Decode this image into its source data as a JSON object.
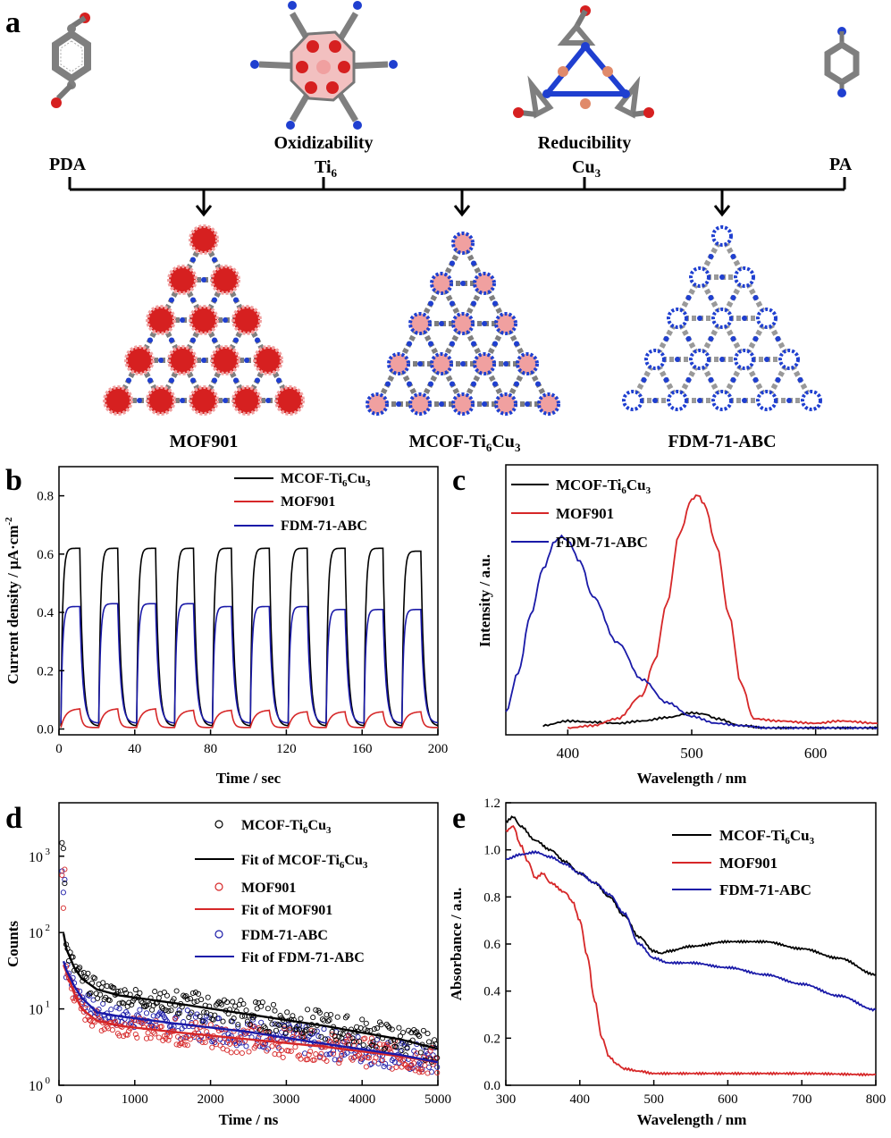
{
  "panels": {
    "a": "a",
    "b": "b",
    "c": "c",
    "d": "d",
    "e": "e"
  },
  "scheme": {
    "ligands": [
      "PDA",
      "PA"
    ],
    "clusters": [
      {
        "label": "Oxidizability",
        "name": "Ti",
        "sub": "6"
      },
      {
        "label": "Reducibility",
        "name": "Cu",
        "sub": "3"
      }
    ],
    "products": [
      {
        "name": "MOF901",
        "sub": "",
        "tail": ""
      },
      {
        "name": "MCOF-Ti",
        "sub": "6",
        "mid": "Cu",
        "sub2": "3"
      },
      {
        "name": "FDM-71-ABC",
        "sub": "",
        "tail": ""
      }
    ],
    "colors": {
      "carbon": "#7f7f7f",
      "oxygen": "#d62020",
      "nitrogen": "#1f3fd0",
      "copper": "#e08a6a",
      "pink": "#f0a0a0"
    }
  },
  "legend_names": {
    "mcof_a": "MCOF-Ti",
    "mcof_b": "6",
    "mcof_c": "Cu",
    "mcof_d": "3",
    "mof901": "MOF901",
    "fdm": "FDM-71-ABC",
    "fit_prefix": "Fit of "
  },
  "colors": {
    "mcof": "#000000",
    "mof901": "#d62728",
    "fdm": "#1a1aa8"
  },
  "chart_data": [
    {
      "id": "b",
      "type": "line",
      "xlabel": "Time / sec",
      "ylabel": "Current density / μA·cm",
      "ylabel_sup": "-2",
      "xlim": [
        0,
        200
      ],
      "ylim": [
        -0.02,
        0.9
      ],
      "xticks": [
        0,
        40,
        80,
        120,
        160,
        200
      ],
      "yticks": [
        0.0,
        0.2,
        0.4,
        0.6,
        0.8
      ],
      "legend": "top-right",
      "cycle_period_s": 20,
      "on_duration_s": 10,
      "series": [
        {
          "name": "MCOF-Ti6Cu3",
          "on_peak": [
            0.62,
            0.62,
            0.62,
            0.62,
            0.62,
            0.62,
            0.62,
            0.62,
            0.62,
            0.61
          ],
          "baseline": 0.01
        },
        {
          "name": "MOF901",
          "on_peak": [
            0.07,
            0.07,
            0.07,
            0.065,
            0.065,
            0.065,
            0.06,
            0.06,
            0.06,
            0.06
          ],
          "baseline": 0.005
        },
        {
          "name": "FDM-71-ABC",
          "on_peak": [
            0.42,
            0.43,
            0.43,
            0.43,
            0.42,
            0.42,
            0.42,
            0.41,
            0.41,
            0.41
          ],
          "baseline": 0.02
        }
      ]
    },
    {
      "id": "c",
      "type": "line",
      "xlabel": "Wavelength / nm",
      "ylabel": "Intensity / a.u.",
      "xlim": [
        350,
        650
      ],
      "xticks": [
        400,
        500,
        600
      ],
      "legend": "top-left",
      "series": [
        {
          "name": "MCOF-Ti6Cu3",
          "x": [
            380,
            400,
            420,
            440,
            460,
            480,
            500,
            510,
            520,
            540,
            560,
            600,
            650
          ],
          "y": [
            0.02,
            0.04,
            0.035,
            0.03,
            0.04,
            0.055,
            0.075,
            0.07,
            0.05,
            0.02,
            0.01,
            0.01,
            0.01
          ]
        },
        {
          "name": "MOF901",
          "x": [
            400,
            420,
            440,
            460,
            470,
            480,
            490,
            500,
            505,
            510,
            520,
            530,
            540,
            550,
            570,
            600,
            620,
            650
          ],
          "y": [
            0.01,
            0.02,
            0.05,
            0.15,
            0.3,
            0.55,
            0.85,
            1.0,
            1.02,
            0.98,
            0.8,
            0.5,
            0.2,
            0.05,
            0.04,
            0.03,
            0.04,
            0.03
          ]
        },
        {
          "name": "FDM-71-ABC",
          "x": [
            350,
            360,
            370,
            380,
            390,
            395,
            400,
            410,
            420,
            440,
            460,
            480,
            500,
            520,
            540,
            560,
            600,
            650
          ],
          "y": [
            0.08,
            0.25,
            0.5,
            0.7,
            0.82,
            0.84,
            0.82,
            0.73,
            0.58,
            0.38,
            0.22,
            0.12,
            0.06,
            0.03,
            0.02,
            0.01,
            0.01,
            0.01
          ]
        }
      ]
    },
    {
      "id": "d",
      "type": "scatter",
      "xlabel": "Time / ns",
      "ylabel": "Counts",
      "xlim": [
        0,
        5000
      ],
      "ylim_log10": [
        0,
        3.7
      ],
      "xticks": [
        0,
        1000,
        2000,
        3000,
        4000,
        5000
      ],
      "yticks_exp": [
        0,
        1,
        2,
        3
      ],
      "scale": "log",
      "legend": "top-right",
      "series": [
        {
          "name": "MCOF-Ti6Cu3",
          "fit_x": [
            50,
            100,
            200,
            300,
            500,
            800,
            1500,
            2500,
            3500,
            4500,
            5000
          ],
          "fit_y": [
            110,
            60,
            35,
            25,
            18,
            15,
            12,
            8.5,
            6,
            4,
            3
          ]
        },
        {
          "name": "MOF901",
          "fit_x": [
            50,
            100,
            200,
            300,
            500,
            800,
            1500,
            2500,
            3500,
            4500,
            5000
          ],
          "fit_y": [
            40,
            30,
            16,
            10,
            7,
            6,
            5,
            4,
            3.2,
            2.4,
            2
          ]
        },
        {
          "name": "FDM-71-ABC",
          "fit_x": [
            50,
            100,
            200,
            300,
            500,
            800,
            1500,
            2500,
            3500,
            4500,
            5000
          ],
          "fit_y": [
            45,
            32,
            20,
            14,
            9,
            8,
            6.5,
            5,
            3.5,
            2.5,
            2
          ]
        }
      ]
    },
    {
      "id": "e",
      "type": "line",
      "xlabel": "Wavelength / nm",
      "ylabel": "Absorbance / a.u.",
      "xlim": [
        300,
        800
      ],
      "ylim": [
        0,
        1.2
      ],
      "xticks": [
        300,
        400,
        500,
        600,
        700,
        800
      ],
      "yticks": [
        0.0,
        0.2,
        0.4,
        0.6,
        0.8,
        1.0,
        1.2
      ],
      "legend": "top-right",
      "series": [
        {
          "name": "MCOF-Ti6Cu3",
          "x": [
            300,
            310,
            320,
            340,
            360,
            380,
            400,
            420,
            440,
            460,
            480,
            500,
            510,
            520,
            550,
            600,
            650,
            700,
            750,
            800
          ],
          "y": [
            1.12,
            1.14,
            1.1,
            1.04,
            1.0,
            0.95,
            0.9,
            0.86,
            0.8,
            0.72,
            0.63,
            0.57,
            0.56,
            0.57,
            0.59,
            0.61,
            0.61,
            0.58,
            0.54,
            0.47
          ]
        },
        {
          "name": "MOF901",
          "x": [
            300,
            310,
            320,
            330,
            340,
            350,
            360,
            380,
            390,
            400,
            410,
            420,
            430,
            440,
            450,
            460,
            480,
            500,
            550,
            600,
            700,
            800
          ],
          "y": [
            1.08,
            1.1,
            1.02,
            0.95,
            0.88,
            0.9,
            0.86,
            0.82,
            0.78,
            0.7,
            0.55,
            0.36,
            0.2,
            0.12,
            0.09,
            0.07,
            0.06,
            0.05,
            0.05,
            0.05,
            0.05,
            0.045
          ]
        },
        {
          "name": "FDM-71-ABC",
          "x": [
            300,
            320,
            340,
            360,
            380,
            400,
            420,
            440,
            460,
            480,
            500,
            520,
            550,
            600,
            650,
            700,
            750,
            800
          ],
          "y": [
            0.96,
            0.98,
            0.99,
            0.97,
            0.94,
            0.9,
            0.86,
            0.81,
            0.73,
            0.6,
            0.54,
            0.52,
            0.52,
            0.5,
            0.47,
            0.43,
            0.38,
            0.32
          ]
        }
      ]
    }
  ]
}
